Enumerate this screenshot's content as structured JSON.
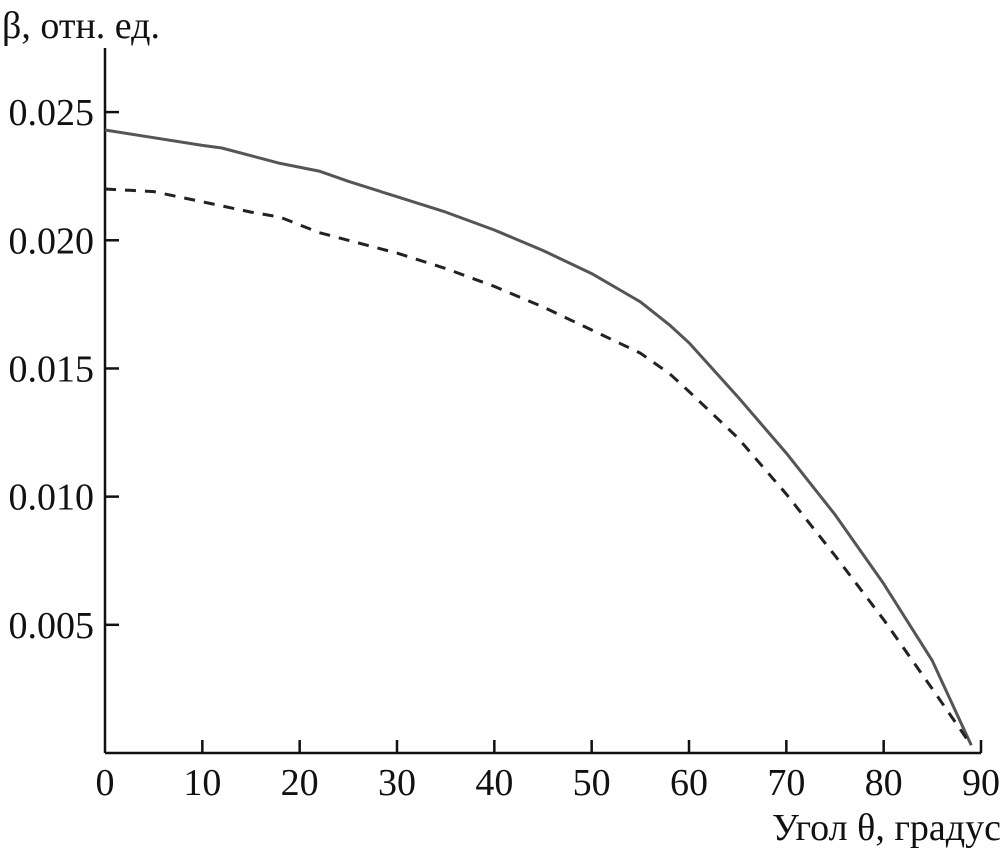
{
  "chart_data": {
    "type": "line",
    "title": "",
    "xlabel": "Угол θ, градус",
    "ylabel": "β, отн. ед.",
    "xlim": [
      0,
      90
    ],
    "ylim": [
      0,
      0.0275
    ],
    "x_ticks": [
      0,
      10,
      20,
      30,
      40,
      50,
      60,
      70,
      80,
      90
    ],
    "x_tick_labels": [
      "0",
      "10",
      "20",
      "30",
      "40",
      "50",
      "60",
      "70",
      "80",
      "90"
    ],
    "y_ticks": [
      0.005,
      0.01,
      0.015,
      0.02,
      0.025
    ],
    "y_tick_labels": [
      "0.005",
      "0.010",
      "0.015",
      "0.020",
      "0.025"
    ],
    "grid": false,
    "legend": "none",
    "series": [
      {
        "style": "solid",
        "color": "#555555",
        "x": [
          0,
          5,
          10,
          12,
          15,
          18,
          22,
          25,
          30,
          35,
          40,
          45,
          50,
          55,
          58,
          60,
          65,
          70,
          75,
          80,
          85,
          89
        ],
        "y": [
          0.0243,
          0.024,
          0.0237,
          0.0236,
          0.0233,
          0.023,
          0.0227,
          0.0223,
          0.0217,
          0.0211,
          0.0204,
          0.0196,
          0.0187,
          0.0176,
          0.0167,
          0.016,
          0.0139,
          0.0117,
          0.0093,
          0.0066,
          0.0036,
          0.0003
        ]
      },
      {
        "style": "dashed",
        "color": "#222222",
        "x": [
          0,
          5,
          10,
          15,
          18,
          20,
          22,
          25,
          30,
          35,
          40,
          45,
          50,
          55,
          58,
          60,
          65,
          70,
          75,
          80,
          85,
          89
        ],
        "y": [
          0.022,
          0.0219,
          0.0215,
          0.0211,
          0.0209,
          0.0206,
          0.0203,
          0.02,
          0.0195,
          0.0189,
          0.0182,
          0.0174,
          0.0165,
          0.0156,
          0.0148,
          0.0141,
          0.0123,
          0.0101,
          0.0077,
          0.0052,
          0.0025,
          0.0003
        ]
      }
    ]
  }
}
